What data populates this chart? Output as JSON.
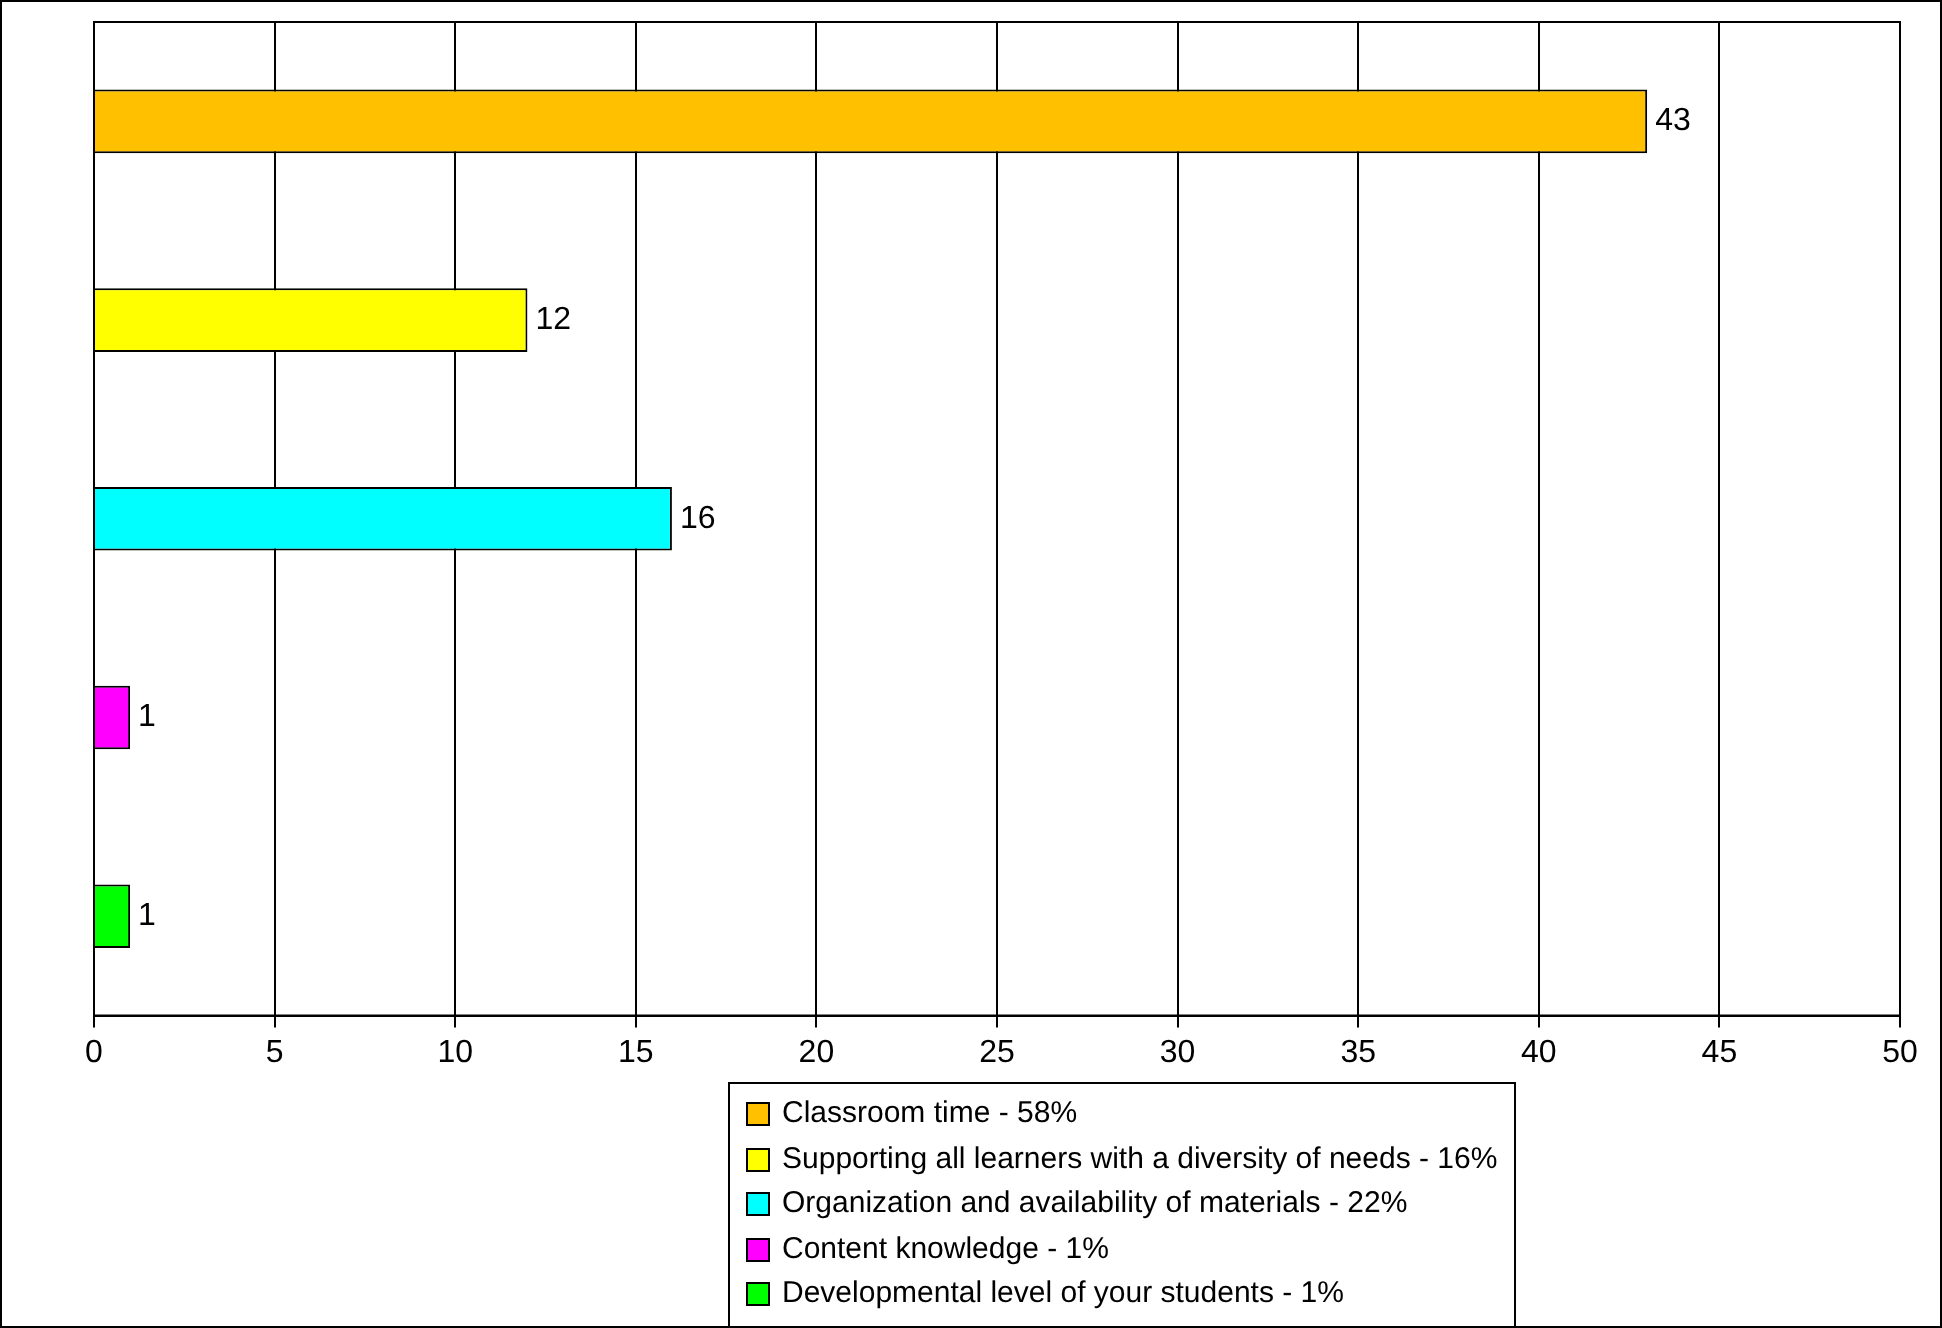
{
  "chart_data": {
    "type": "bar",
    "orientation": "horizontal",
    "categories": [
      null,
      null,
      null,
      null,
      null
    ],
    "series": [
      {
        "name": "Classroom time - 58%",
        "color": "#ffc000",
        "values": [
          43,
          null,
          null,
          null,
          null
        ]
      },
      {
        "name": "Supporting all learners with a diversity of needs - 16%",
        "color": "#ffff00",
        "values": [
          null,
          12,
          null,
          null,
          null
        ]
      },
      {
        "name": "Organization and availability of materials - 22%",
        "color": "#00ffff",
        "values": [
          null,
          null,
          16,
          null,
          null
        ]
      },
      {
        "name": "Content knowledge - 1%",
        "color": "#ff00ff",
        "values": [
          null,
          null,
          null,
          1,
          null
        ]
      },
      {
        "name": "Developmental level of your students - 1%",
        "color": "#00ff00",
        "values": [
          null,
          null,
          null,
          null,
          1
        ]
      }
    ],
    "xlim": [
      0,
      50
    ],
    "xticks": [
      0,
      5,
      10,
      15,
      20,
      25,
      30,
      35,
      40,
      45,
      50
    ],
    "grid": "x",
    "legend": "bottom",
    "tick_labels": "x",
    "data_labels": true
  }
}
